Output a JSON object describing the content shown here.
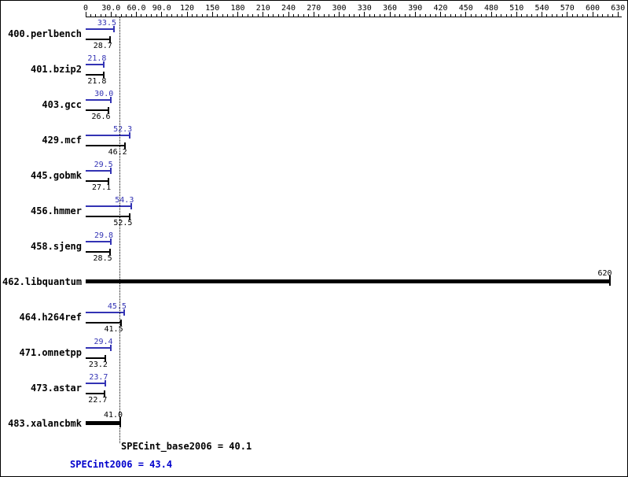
{
  "chart_data": {
    "type": "bar",
    "orientation": "horizontal",
    "axis": {
      "min": 0,
      "max": 634,
      "major_step": 30,
      "minor_step": 6,
      "tick_labels": [
        "0",
        "30.0",
        "60.0",
        "90.0",
        "120",
        "150",
        "180",
        "210",
        "240",
        "270",
        "300",
        "330",
        "360",
        "390",
        "420",
        "450",
        "480",
        "510",
        "540",
        "570",
        "600",
        "630"
      ]
    },
    "benchmarks": [
      {
        "name": "400.perlbench",
        "peak": 33.5,
        "base": 28.7,
        "peak_label": "33.5",
        "base_label": "28.7",
        "merged": false
      },
      {
        "name": "401.bzip2",
        "peak": 21.8,
        "base": 21.8,
        "peak_label": "21.8",
        "base_label": "21.8",
        "merged": false
      },
      {
        "name": "403.gcc",
        "peak": 30.0,
        "base": 26.6,
        "peak_label": "30.0",
        "base_label": "26.6",
        "merged": false
      },
      {
        "name": "429.mcf",
        "peak": 52.3,
        "base": 46.2,
        "peak_label": "52.3",
        "base_label": "46.2",
        "merged": false
      },
      {
        "name": "445.gobmk",
        "peak": 29.5,
        "base": 27.1,
        "peak_label": "29.5",
        "base_label": "27.1",
        "merged": false
      },
      {
        "name": "456.hmmer",
        "peak": 54.3,
        "base": 52.5,
        "peak_label": "54.3",
        "base_label": "52.5",
        "merged": false
      },
      {
        "name": "458.sjeng",
        "peak": 29.8,
        "base": 28.5,
        "peak_label": "29.8",
        "base_label": "28.5",
        "merged": false
      },
      {
        "name": "462.libquantum",
        "peak": 620,
        "base": 620,
        "merged": true,
        "merged_label": "620"
      },
      {
        "name": "464.h264ref",
        "peak": 45.5,
        "base": 41.5,
        "peak_label": "45.5",
        "base_label": "41.5",
        "merged": false
      },
      {
        "name": "471.omnetpp",
        "peak": 29.4,
        "base": 23.2,
        "peak_label": "29.4",
        "base_label": "23.2",
        "merged": false
      },
      {
        "name": "473.astar",
        "peak": 23.7,
        "base": 22.7,
        "peak_label": "23.7",
        "base_label": "22.7",
        "merged": false
      },
      {
        "name": "483.xalancbmk",
        "peak": 41.0,
        "base": 41.0,
        "merged": true,
        "merged_label": "41.0"
      }
    ],
    "reference_line": {
      "value": 40.1,
      "label": "SPECint_base2006"
    },
    "footer": {
      "base_text": "SPECint_base2006 = 40.1",
      "peak_text": "SPECint2006 = 43.4"
    },
    "colors": {
      "peak": "#3333b4",
      "base": "#000000",
      "peak_result_text": "#0000cc",
      "base_result_text": "#000000"
    }
  }
}
